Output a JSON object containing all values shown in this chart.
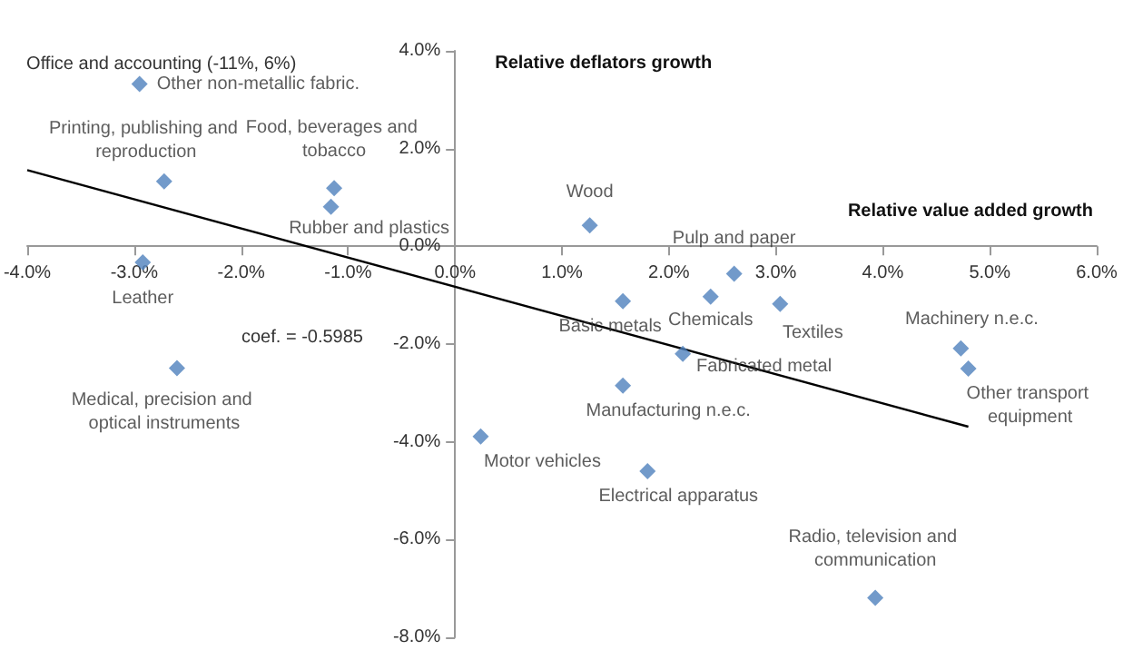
{
  "chart_data": {
    "type": "scatter",
    "xlabel": "Relative value added growth",
    "ylabel": "Relative deflators growth",
    "marker": "diamond",
    "grid": false,
    "legend": false,
    "xlim": [
      -4,
      6
    ],
    "ylim": [
      -8,
      4
    ],
    "xticks": [
      {
        "value": -4,
        "label": "-4.0%"
      },
      {
        "value": -3,
        "label": "-3.0%"
      },
      {
        "value": -2,
        "label": "-2.0%"
      },
      {
        "value": -1,
        "label": "-1.0%"
      },
      {
        "value": 0,
        "label": "0.0%"
      },
      {
        "value": 1,
        "label": "1.0%"
      },
      {
        "value": 2,
        "label": "2.0%"
      },
      {
        "value": 3,
        "label": "3.0%"
      },
      {
        "value": 4,
        "label": "4.0%"
      },
      {
        "value": 5,
        "label": "5.0%"
      },
      {
        "value": 6,
        "label": "6.0%"
      }
    ],
    "yticks": [
      {
        "value": -8,
        "label": "-8.0%"
      },
      {
        "value": -6,
        "label": "-6.0%"
      },
      {
        "value": -4,
        "label": "-4.0%"
      },
      {
        "value": -2,
        "label": "-2.0%"
      },
      {
        "value": 0,
        "label": "0.0%"
      },
      {
        "value": 2,
        "label": "2.0%"
      },
      {
        "value": 4,
        "label": "4.0%"
      }
    ],
    "annotations": [
      {
        "text": "Office and accounting (-11%, 6%)",
        "x": -2.95,
        "y": 3.32
      },
      "coef. = -0.5985"
    ],
    "series": [
      {
        "name": "Other non-metallic fabric.",
        "color": "#4f81bd",
        "x": [
          -2.95
        ],
        "values": [
          3.32
        ]
      },
      {
        "name": "Printing, publishing and reproduction",
        "color": "#4f81bd",
        "x": [
          -2.72
        ],
        "values": [
          1.33
        ]
      },
      {
        "name": "Leather",
        "color": "#4f81bd",
        "x": [
          -2.92
        ],
        "values": [
          -0.33
        ]
      },
      {
        "name": "Food, beverages and tobacco",
        "color": "#4f81bd",
        "x": [
          -1.13
        ],
        "values": [
          1.19
        ]
      },
      {
        "name": "Rubber and plastics",
        "color": "#4f81bd",
        "x": [
          -1.16
        ],
        "values": [
          0.81
        ]
      },
      {
        "name": "Medical, precision and optical instruments",
        "color": "#4f81bd",
        "x": [
          -2.6
        ],
        "values": [
          -2.49
        ]
      },
      {
        "name": "Motor vehicles",
        "color": "#4f81bd",
        "x": [
          0.24
        ],
        "values": [
          -3.89
        ]
      },
      {
        "name": "Wood",
        "color": "#4f81bd",
        "x": [
          1.26
        ],
        "values": [
          0.43
        ]
      },
      {
        "name": "Basic metals",
        "color": "#4f81bd",
        "x": [
          1.57
        ],
        "values": [
          -1.12
        ]
      },
      {
        "name": "Pulp and paper",
        "color": "#4f81bd",
        "x": [
          2.61
        ],
        "values": [
          -0.56
        ]
      },
      {
        "name": "Chemicals",
        "color": "#4f81bd",
        "x": [
          2.39
        ],
        "values": [
          -1.03
        ]
      },
      {
        "name": "Textiles",
        "color": "#4f81bd",
        "x": [
          3.04
        ],
        "values": [
          -1.18
        ]
      },
      {
        "name": "Fabricated metal",
        "color": "#4f81bd",
        "x": [
          2.13
        ],
        "values": [
          -2.2
        ]
      },
      {
        "name": "Manufacturing n.e.c.",
        "color": "#4f81bd",
        "x": [
          1.57
        ],
        "values": [
          -2.85
        ]
      },
      {
        "name": "Electrical apparatus",
        "color": "#4f81bd",
        "x": [
          1.8
        ],
        "values": [
          -4.6
        ]
      },
      {
        "name": "Radio, television and communication",
        "color": "#4f81bd",
        "x": [
          3.93
        ],
        "values": [
          -7.19
        ]
      },
      {
        "name": "Machinery n.e.c.",
        "color": "#4f81bd",
        "x": [
          4.73
        ],
        "values": [
          -2.09
        ]
      },
      {
        "name": "Other transport equipment",
        "color": "#4f81bd",
        "x": [
          4.8
        ],
        "values": [
          -2.5
        ]
      },
      {
        "type": "line",
        "marker": "none",
        "color": "#000000",
        "x": [
          -4,
          4.8
        ],
        "values": [
          1.56,
          -3.69
        ]
      }
    ]
  }
}
